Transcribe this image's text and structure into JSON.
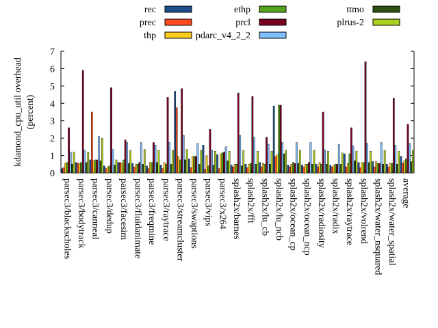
{
  "chart_data": {
    "type": "bar",
    "ylabel_lines": [
      "kdamond_cpu_util overhead",
      "(percent)"
    ],
    "xlabel": "",
    "ylim": [
      0,
      7
    ],
    "yticks": [
      0,
      1,
      2,
      3,
      4,
      5,
      6,
      7
    ],
    "grid": false,
    "legend_position": "top",
    "categories": [
      "parsec3/blackscholes",
      "parsec3/bodytrack",
      "parsec3/canneal",
      "parsec3/dedup",
      "parsec3/facesim",
      "parsec3/fluidanimate",
      "parsec3/freqmine",
      "parsec3/raytrace",
      "parsec3/streamcluster",
      "parsec3/swaptions",
      "parsec3/vips",
      "parsec3/x264",
      "splash2x/barnes",
      "splash2x/fft",
      "splash2x/lu_cb",
      "splash2x/lu_ncb",
      "splash2x/ocean_cp",
      "splash2x/ocean_ncp",
      "splash2x/radiosity",
      "splash2x/radix",
      "splash2x/raytrace",
      "splash2x/volrend",
      "splash2x/water_nsquared",
      "splash2x/water_spatial",
      "average"
    ],
    "series": [
      {
        "name": "rec",
        "color": "#1f4e8c",
        "values": [
          0.25,
          0.6,
          0.75,
          0.4,
          0.6,
          0.55,
          0.4,
          0.45,
          4.7,
          0.8,
          1.6,
          1.05,
          0.45,
          0.5,
          0.6,
          3.85,
          0.45,
          0.45,
          0.5,
          0.45,
          1.1,
          0.6,
          0.65,
          0.5,
          0.95
        ]
      },
      {
        "name": "prec",
        "color": "#ff4b1f",
        "values": [
          0.3,
          0.55,
          3.5,
          0.25,
          0.6,
          0.35,
          0.25,
          0.25,
          3.75,
          0.3,
          0.2,
          0.25,
          0.35,
          0.3,
          0.35,
          0.95,
          0.35,
          0.35,
          0.35,
          0.35,
          0.35,
          0.3,
          0.35,
          0.35,
          0.55
        ]
      },
      {
        "name": "thp",
        "color": "#ffcc1f",
        "values": [
          0.55,
          0.55,
          0.7,
          0.35,
          0.55,
          0.5,
          0.6,
          0.6,
          0.95,
          0.95,
          1.0,
          1.1,
          0.5,
          0.5,
          0.55,
          1.05,
          0.5,
          0.5,
          0.6,
          0.45,
          0.55,
          0.6,
          0.65,
          0.55,
          0.7
        ]
      },
      {
        "name": "ethp",
        "color": "#56a31d",
        "values": [
          0.6,
          0.6,
          0.75,
          0.4,
          0.75,
          0.5,
          0.6,
          0.5,
          0.75,
          0.95,
          0.4,
          1.15,
          0.5,
          0.55,
          0.5,
          3.9,
          0.6,
          0.5,
          0.5,
          0.5,
          1.1,
          0.6,
          0.55,
          0.55,
          0.8
        ]
      },
      {
        "name": "prcl",
        "color": "#7a0220",
        "values": [
          2.6,
          5.9,
          0.75,
          4.9,
          1.9,
          0.6,
          1.75,
          4.35,
          4.85,
          0.95,
          2.5,
          1.2,
          4.6,
          4.4,
          2.05,
          3.9,
          0.55,
          0.6,
          3.5,
          0.5,
          2.6,
          6.4,
          0.55,
          4.3,
          2.8
        ]
      },
      {
        "name": "pdarc_v4_2_2",
        "color": "#7fbfff",
        "values": [
          1.2,
          1.3,
          2.1,
          1.35,
          1.75,
          1.75,
          1.6,
          1.75,
          2.15,
          1.7,
          1.3,
          1.5,
          2.15,
          2.05,
          1.65,
          1.75,
          1.75,
          1.75,
          1.3,
          1.65,
          1.55,
          1.7,
          1.75,
          1.6,
          1.7
        ]
      },
      {
        "name": "ttmo",
        "color": "#2f4f0f",
        "values": [
          0.5,
          0.6,
          0.7,
          0.45,
          0.55,
          0.5,
          0.6,
          0.5,
          0.75,
          0.5,
          0.45,
          0.7,
          0.4,
          0.5,
          0.5,
          1.1,
          0.55,
          0.5,
          0.5,
          0.5,
          0.7,
          0.6,
          0.5,
          0.5,
          0.65
        ]
      },
      {
        "name": "plrus-2",
        "color": "#a8d21d",
        "values": [
          1.2,
          1.2,
          2.0,
          0.75,
          1.3,
          1.35,
          1.3,
          1.3,
          1.35,
          1.3,
          1.25,
          1.25,
          1.3,
          1.25,
          1.25,
          1.3,
          1.3,
          1.3,
          1.25,
          1.15,
          1.25,
          1.25,
          1.3,
          1.25,
          1.3
        ]
      }
    ]
  }
}
